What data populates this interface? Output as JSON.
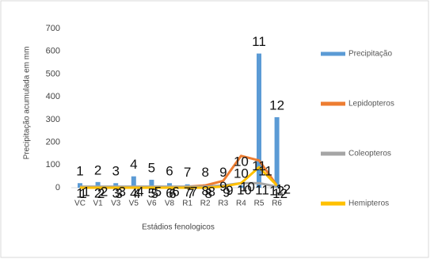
{
  "chart_data": {
    "type": "bar_line",
    "y_label": "Precipitação acumulada em mm",
    "x_label": "Estádios fenologicos",
    "categories": [
      "VC",
      "V1",
      "V3",
      "V5",
      "V6",
      "V8",
      "R1",
      "R2",
      "R3",
      "R4",
      "R5",
      "R6"
    ],
    "ylim": [
      0,
      700
    ],
    "yticks": [
      0,
      100,
      200,
      300,
      400,
      500,
      600,
      700
    ],
    "series": [
      {
        "name": "Precipitação",
        "kind": "bar",
        "color": "#5b9bd5",
        "values": [
          20,
          25,
          20,
          50,
          35,
          20,
          15,
          15,
          15,
          10,
          590,
          310
        ],
        "point_labels": [
          "1",
          "2",
          "3",
          "4",
          "5",
          "6",
          "7",
          "8",
          "9",
          "10",
          "11",
          "12"
        ]
      },
      {
        "name": "Lepidopteros",
        "kind": "line",
        "color": "#ed7d31",
        "values": [
          0,
          0,
          0,
          0,
          0,
          0,
          5,
          10,
          30,
          140,
          120,
          10
        ],
        "point_labels": [
          "1",
          "2",
          "3",
          "4",
          "5",
          "6",
          "7",
          "8",
          "9",
          "10",
          "11",
          "12"
        ]
      },
      {
        "name": "Coleopteros",
        "kind": "line",
        "color": "#a5a5a5",
        "values": [
          5,
          5,
          5,
          5,
          5,
          5,
          5,
          5,
          10,
          20,
          20,
          5
        ],
        "point_labels": [
          "1",
          "2",
          "3",
          "4",
          "5",
          "6",
          "7",
          "8",
          "9",
          "10",
          "11",
          "12"
        ]
      },
      {
        "name": "Hemipteros",
        "kind": "line",
        "color": "#ffc000",
        "values": [
          0,
          0,
          0,
          0,
          0,
          0,
          0,
          0,
          5,
          20,
          90,
          10
        ],
        "point_labels": [
          "1",
          "2",
          "3",
          "4",
          "5",
          "6",
          "7",
          "8",
          "9",
          "10",
          "11",
          "12"
        ]
      }
    ]
  }
}
